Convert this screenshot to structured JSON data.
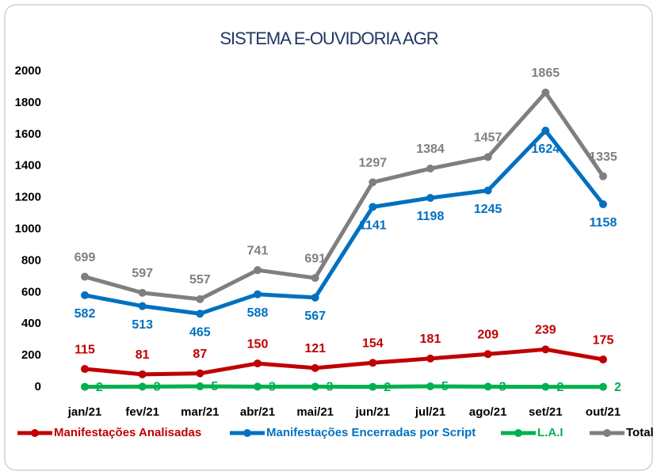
{
  "chart_data": {
    "type": "line",
    "title": "SISTEMA E-OUVIDORIA AGR",
    "categories": [
      "jan/21",
      "fev/21",
      "mar/21",
      "abr/21",
      "mai/21",
      "jun/21",
      "jul/21",
      "ago/21",
      "set/21",
      "out/21"
    ],
    "series": [
      {
        "name": "Manifestações Analisadas",
        "color": "#c00000",
        "values": [
          115,
          81,
          87,
          150,
          121,
          154,
          181,
          209,
          239,
          175
        ]
      },
      {
        "name": "Manifestações Encerradas por Script",
        "color": "#0070c0",
        "values": [
          582,
          513,
          465,
          588,
          567,
          1141,
          1198,
          1245,
          1624,
          1158
        ]
      },
      {
        "name": "L.A.I",
        "color": "#00b050",
        "values": [
          2,
          3,
          5,
          3,
          3,
          2,
          5,
          3,
          2,
          2
        ]
      },
      {
        "name": "Total",
        "color": "#7f7f7f",
        "values": [
          699,
          597,
          557,
          741,
          691,
          1297,
          1384,
          1457,
          1865,
          1335
        ]
      }
    ],
    "ylim": [
      0,
      2000
    ],
    "yticks": [
      0,
      200,
      400,
      600,
      800,
      1000,
      1200,
      1400,
      1600,
      1800,
      2000
    ],
    "grid": false,
    "legend": "bottom"
  }
}
